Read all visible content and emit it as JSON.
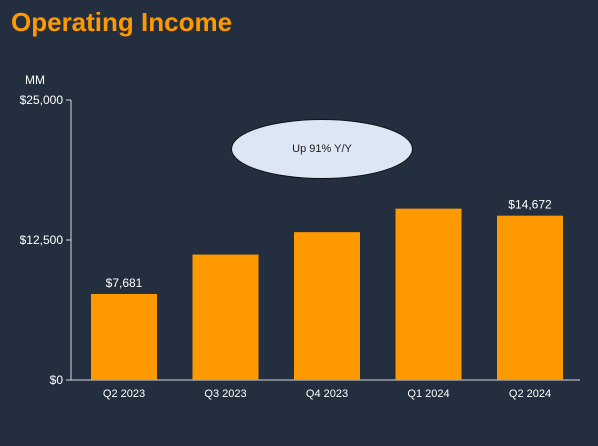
{
  "slide": {
    "title": "Operating Income",
    "unit_label": "MM",
    "callout": "Up 91% Y/Y"
  },
  "colors": {
    "background": "#232f3e",
    "title": "#ff9900",
    "bar": "#ff9900",
    "text": "#ffffff",
    "axis": "#d9d9d9",
    "callout_fill": "#dde6f4"
  },
  "chart_data": {
    "type": "bar",
    "title": "Operating Income",
    "ylabel": "MM",
    "categories": [
      "Q2 2023",
      "Q3 2023",
      "Q4 2023",
      "Q1 2024",
      "Q2 2024"
    ],
    "values": [
      7681,
      11200,
      13200,
      15300,
      14672
    ],
    "data_labels": [
      "$7,681",
      "",
      "",
      "",
      "$14,672"
    ],
    "ylim": [
      0,
      25000
    ],
    "yticks": [
      0,
      12500,
      25000
    ],
    "ytick_labels": [
      "$0",
      "$12,500",
      "$25,000"
    ],
    "grid": false,
    "legend": "none"
  }
}
